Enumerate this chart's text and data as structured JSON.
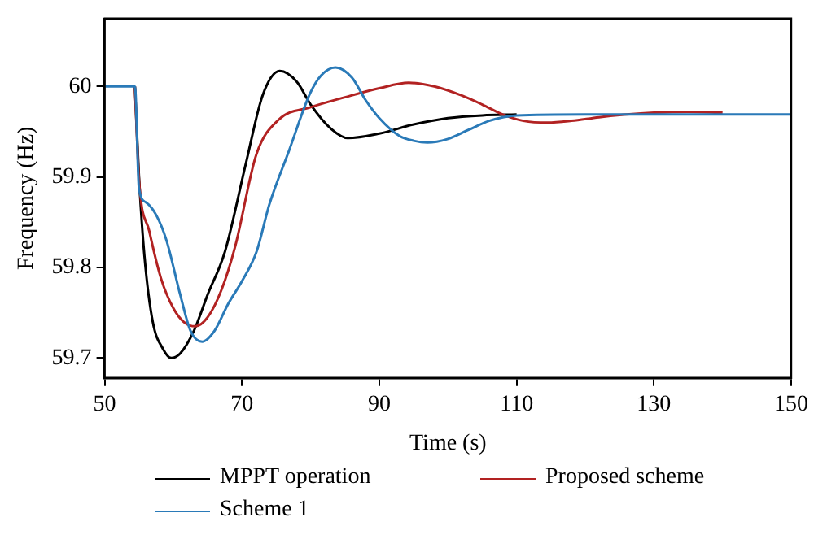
{
  "chart_data": {
    "type": "line",
    "xlabel": "Time (s)",
    "ylabel": "Frequency (Hz)",
    "xlim": [
      50,
      150
    ],
    "xticks": [
      50,
      70,
      90,
      110,
      130,
      150
    ],
    "ylim": [
      59.678,
      60.075
    ],
    "yticks": [
      59.7,
      59.8,
      59.9,
      60
    ],
    "legend": "bottom",
    "grid": false,
    "marker": "none",
    "line_style": "solid",
    "series": [
      {
        "name": "MPPT operation",
        "color": "#000000",
        "x": [
          54.4,
          55,
          55.8,
          57,
          58.5,
          59.7,
          61,
          63,
          65,
          67.5,
          70.6,
          73,
          75.5,
          78,
          80,
          83,
          85.4,
          90,
          95,
          100,
          105,
          110
        ],
        "values": [
          60,
          59.9,
          59.812,
          59.74,
          59.71,
          59.7,
          59.705,
          59.73,
          59.77,
          59.817,
          59.916,
          59.99,
          60.017,
          60.005,
          59.98,
          59.953,
          59.943,
          59.948,
          59.958,
          59.965,
          59.968,
          59.969
        ]
      },
      {
        "name": "Proposed scheme",
        "color": "#b22222",
        "x": [
          54.4,
          55,
          56.5,
          58.2,
          60,
          61.5,
          63.2,
          65,
          67,
          69,
          72.1,
          75.3,
          80,
          85,
          90,
          94.3,
          98,
          102,
          105,
          108,
          111,
          114.5,
          118,
          122,
          126,
          130,
          135,
          140
        ],
        "values": [
          60,
          59.897,
          59.84,
          59.788,
          59.755,
          59.74,
          59.735,
          59.745,
          59.775,
          59.823,
          59.925,
          59.963,
          59.977,
          59.988,
          59.998,
          60.004,
          60,
          59.99,
          59.98,
          59.969,
          59.962,
          59.96,
          59.962,
          59.966,
          59.969,
          59.971,
          59.972,
          59.971
        ]
      },
      {
        "name": "Scheme 1",
        "color": "#2a7ab8",
        "x": [
          50,
          54.3,
          54.4,
          55,
          56,
          57.5,
          59,
          61,
          62.5,
          64.2,
          66,
          68,
          70,
          72.1,
          74,
          76.8,
          79.9,
          81.5,
          83.6,
          86,
          88,
          90,
          93,
          95,
          97,
          100,
          103,
          106,
          110,
          120,
          130,
          140,
          150
        ],
        "values": [
          60,
          60,
          60,
          59.887,
          59.872,
          59.858,
          59.83,
          59.77,
          59.73,
          59.718,
          59.73,
          59.76,
          59.785,
          59.817,
          59.87,
          59.928,
          59.992,
          60.012,
          60.021,
          60.01,
          59.985,
          59.965,
          59.945,
          59.94,
          59.938,
          59.942,
          59.952,
          59.962,
          59.968,
          59.969,
          59.969,
          59.969,
          59.969
        ]
      }
    ]
  }
}
